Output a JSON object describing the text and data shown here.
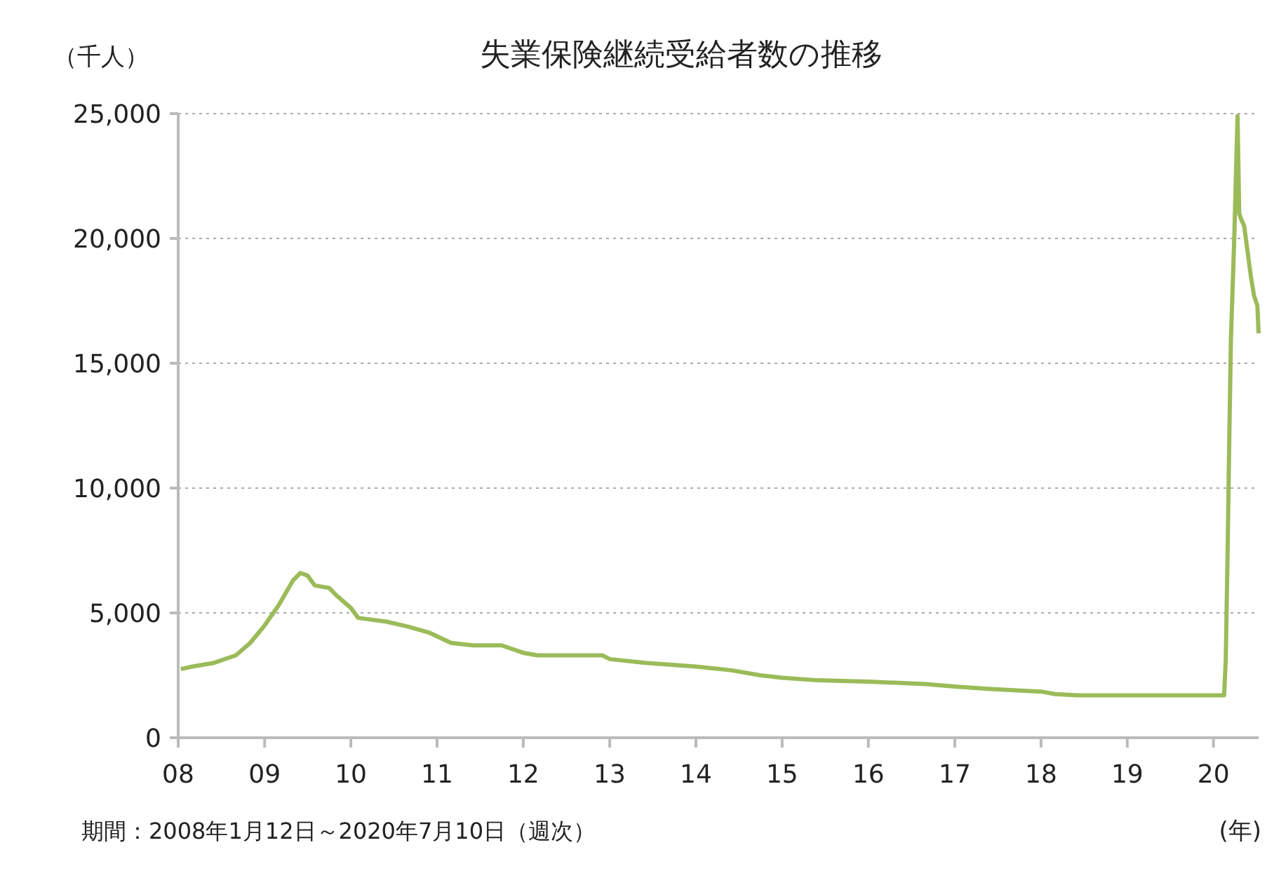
{
  "chart_data": {
    "type": "line",
    "title": "失業保険継続受給者数の推移",
    "ylabel": "（千人）",
    "xlabel": "(年)",
    "annotations": [
      "期間：2008年1月12日～2020年7月10日（週次）"
    ],
    "xlim": [
      "2008-01-01",
      "2020-07-10"
    ],
    "xticks": [
      {
        "value": "2008-01-01",
        "label": "08"
      },
      {
        "value": "2009-01-01",
        "label": "09"
      },
      {
        "value": "2010-01-01",
        "label": "10"
      },
      {
        "value": "2011-01-01",
        "label": "11"
      },
      {
        "value": "2012-01-01",
        "label": "12"
      },
      {
        "value": "2013-01-01",
        "label": "13"
      },
      {
        "value": "2014-01-01",
        "label": "14"
      },
      {
        "value": "2015-01-01",
        "label": "15"
      },
      {
        "value": "2016-01-01",
        "label": "16"
      },
      {
        "value": "2017-01-01",
        "label": "17"
      },
      {
        "value": "2018-01-01",
        "label": "18"
      },
      {
        "value": "2019-01-01",
        "label": "19"
      },
      {
        "value": "2020-01-01",
        "label": "20"
      }
    ],
    "ylim": [
      0,
      25000
    ],
    "yticks": [
      {
        "value": 0,
        "label": "0"
      },
      {
        "value": 5000,
        "label": "5,000"
      },
      {
        "value": 10000,
        "label": "10,000"
      },
      {
        "value": 15000,
        "label": "15,000"
      },
      {
        "value": 20000,
        "label": "20,000"
      },
      {
        "value": 25000,
        "label": "25,000"
      }
    ],
    "grid": "y",
    "line_style": "solid",
    "marker": "none",
    "series": [
      {
        "color": "#9bbb59",
        "x": [
          "2008-01-12",
          "2008-03-01",
          "2008-06-01",
          "2008-09-01",
          "2008-11-01",
          "2009-01-01",
          "2009-03-01",
          "2009-05-01",
          "2009-06-01",
          "2009-07-01",
          "2009-08-01",
          "2009-10-01",
          "2009-11-01",
          "2010-01-01",
          "2010-02-01",
          "2010-06-01",
          "2010-09-01",
          "2010-12-01",
          "2011-03-01",
          "2011-06-01",
          "2011-10-01",
          "2012-01-01",
          "2012-03-01",
          "2012-12-01",
          "2013-01-01",
          "2013-06-01",
          "2014-01-01",
          "2014-06-01",
          "2014-10-01",
          "2015-01-01",
          "2015-06-01",
          "2016-01-01",
          "2016-09-01",
          "2017-01-01",
          "2017-06-01",
          "2018-01-01",
          "2018-03-01",
          "2018-06-01",
          "2019-01-01",
          "2019-06-01",
          "2020-02-01",
          "2020-02-15",
          "2020-02-22",
          "2020-03-01",
          "2020-03-08",
          "2020-03-15",
          "2020-03-22",
          "2020-03-29",
          "2020-04-05",
          "2020-04-12",
          "2020-04-19",
          "2020-04-26",
          "2020-05-10",
          "2020-05-24",
          "2020-06-07",
          "2020-06-21",
          "2020-07-05",
          "2020-07-10"
        ],
        "values": [
          2750,
          2850,
          3000,
          3300,
          3800,
          4500,
          5300,
          6300,
          6600,
          6500,
          6100,
          6000,
          5700,
          5200,
          4800,
          4650,
          4450,
          4200,
          3800,
          3700,
          3700,
          3400,
          3300,
          3300,
          3150,
          3000,
          2850,
          2700,
          2500,
          2400,
          2300,
          2250,
          2150,
          2050,
          1950,
          1850,
          1750,
          1700,
          1700,
          1700,
          1700,
          1700,
          3100,
          7500,
          12000,
          16000,
          18000,
          20000,
          22500,
          24900,
          21000,
          20800,
          20500,
          19500,
          18500,
          17700,
          17300,
          16200
        ]
      }
    ]
  }
}
